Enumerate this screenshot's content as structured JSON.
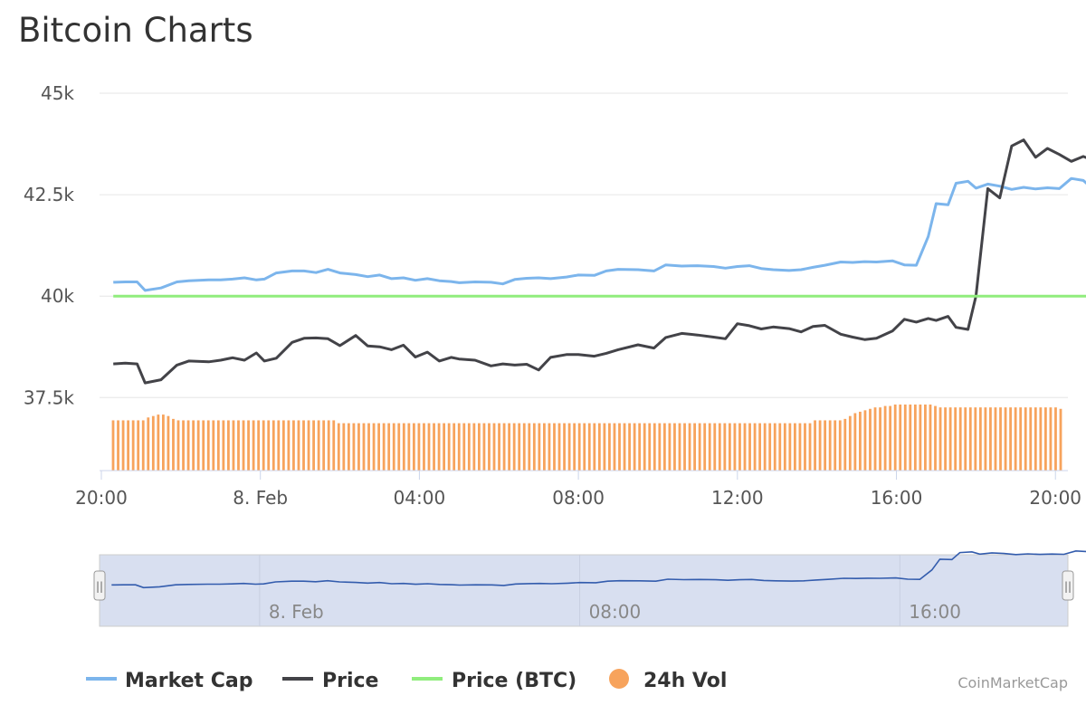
{
  "chart_data": {
    "type": "line",
    "title": "Bitcoin Charts",
    "y_ticks": [
      {
        "label": "45k",
        "value": 45000
      },
      {
        "label": "42.5k",
        "value": 42500
      },
      {
        "label": "40k",
        "value": 40000
      },
      {
        "label": "37.5k",
        "value": 37500
      }
    ],
    "ylim": [
      35700,
      45000
    ],
    "x_ticks": [
      "20:00",
      "8. Feb",
      "04:00",
      "08:00",
      "12:00",
      "16:00",
      "20:00"
    ],
    "x_tick_hours": [
      0,
      4,
      8,
      12,
      16,
      20,
      24
    ],
    "x_range_hours": [
      0,
      24.2
    ],
    "grid": true,
    "legend_position": "bottom",
    "series": [
      {
        "name": "Market Cap",
        "color": "#7cb5ec",
        "points": [
          [
            0.3,
            40340
          ],
          [
            0.6,
            40350
          ],
          [
            0.9,
            40350
          ],
          [
            1.1,
            40140
          ],
          [
            1.5,
            40200
          ],
          [
            1.9,
            40350
          ],
          [
            2.2,
            40380
          ],
          [
            2.7,
            40400
          ],
          [
            3.0,
            40400
          ],
          [
            3.3,
            40420
          ],
          [
            3.6,
            40450
          ],
          [
            3.9,
            40400
          ],
          [
            4.1,
            40420
          ],
          [
            4.4,
            40570
          ],
          [
            4.8,
            40620
          ],
          [
            5.1,
            40620
          ],
          [
            5.4,
            40580
          ],
          [
            5.7,
            40660
          ],
          [
            6.0,
            40570
          ],
          [
            6.4,
            40530
          ],
          [
            6.7,
            40480
          ],
          [
            7.0,
            40520
          ],
          [
            7.3,
            40430
          ],
          [
            7.6,
            40450
          ],
          [
            7.9,
            40390
          ],
          [
            8.2,
            40430
          ],
          [
            8.5,
            40380
          ],
          [
            8.8,
            40360
          ],
          [
            9.0,
            40330
          ],
          [
            9.4,
            40350
          ],
          [
            9.8,
            40340
          ],
          [
            10.1,
            40300
          ],
          [
            10.4,
            40410
          ],
          [
            10.7,
            40440
          ],
          [
            11.0,
            40450
          ],
          [
            11.3,
            40430
          ],
          [
            11.7,
            40470
          ],
          [
            12.0,
            40520
          ],
          [
            12.4,
            40510
          ],
          [
            12.7,
            40620
          ],
          [
            13.0,
            40660
          ],
          [
            13.5,
            40650
          ],
          [
            13.9,
            40620
          ],
          [
            14.2,
            40770
          ],
          [
            14.6,
            40740
          ],
          [
            15.0,
            40750
          ],
          [
            15.4,
            40730
          ],
          [
            15.7,
            40690
          ],
          [
            16.0,
            40730
          ],
          [
            16.3,
            40750
          ],
          [
            16.6,
            40680
          ],
          [
            16.9,
            40650
          ],
          [
            17.3,
            40630
          ],
          [
            17.6,
            40650
          ],
          [
            17.9,
            40710
          ],
          [
            18.2,
            40760
          ],
          [
            18.6,
            40840
          ],
          [
            18.9,
            40830
          ],
          [
            19.2,
            40850
          ],
          [
            19.5,
            40840
          ],
          [
            19.9,
            40870
          ],
          [
            20.2,
            40770
          ],
          [
            20.5,
            40760
          ],
          [
            20.8,
            41470
          ],
          [
            21.0,
            42280
          ],
          [
            21.3,
            42250
          ],
          [
            21.5,
            42780
          ],
          [
            21.8,
            42830
          ],
          [
            22.0,
            42660
          ],
          [
            22.3,
            42760
          ],
          [
            22.6,
            42710
          ],
          [
            22.9,
            42630
          ],
          [
            23.2,
            42680
          ],
          [
            23.5,
            42640
          ],
          [
            23.8,
            42670
          ],
          [
            24.1,
            42650
          ],
          [
            24.4,
            42900
          ],
          [
            24.7,
            42850
          ],
          [
            25.0,
            42600
          ],
          [
            25.3,
            42610
          ],
          [
            25.6,
            42520
          ],
          [
            25.9,
            42420
          ],
          [
            26.2,
            42480
          ],
          [
            26.5,
            42500
          ],
          [
            26.8,
            42460
          ],
          [
            27.1,
            42360
          ],
          [
            27.4,
            42470
          ],
          [
            27.7,
            42400
          ],
          [
            28.0,
            42380
          ]
        ]
      },
      {
        "name": "Price",
        "color": "#434348",
        "points": [
          [
            0.3,
            38330
          ],
          [
            0.6,
            38350
          ],
          [
            0.9,
            38330
          ],
          [
            1.1,
            37860
          ],
          [
            1.5,
            37940
          ],
          [
            1.9,
            38300
          ],
          [
            2.2,
            38400
          ],
          [
            2.7,
            38380
          ],
          [
            3.0,
            38420
          ],
          [
            3.3,
            38480
          ],
          [
            3.6,
            38420
          ],
          [
            3.9,
            38600
          ],
          [
            4.1,
            38400
          ],
          [
            4.4,
            38470
          ],
          [
            4.8,
            38860
          ],
          [
            5.1,
            38960
          ],
          [
            5.4,
            38970
          ],
          [
            5.7,
            38950
          ],
          [
            6.0,
            38780
          ],
          [
            6.4,
            39030
          ],
          [
            6.7,
            38770
          ],
          [
            7.0,
            38750
          ],
          [
            7.3,
            38680
          ],
          [
            7.6,
            38790
          ],
          [
            7.9,
            38500
          ],
          [
            8.2,
            38620
          ],
          [
            8.5,
            38400
          ],
          [
            8.8,
            38490
          ],
          [
            9.0,
            38450
          ],
          [
            9.4,
            38420
          ],
          [
            9.8,
            38280
          ],
          [
            10.1,
            38330
          ],
          [
            10.4,
            38300
          ],
          [
            10.7,
            38320
          ],
          [
            11.0,
            38180
          ],
          [
            11.3,
            38490
          ],
          [
            11.7,
            38560
          ],
          [
            12.0,
            38560
          ],
          [
            12.4,
            38520
          ],
          [
            12.7,
            38590
          ],
          [
            13.0,
            38680
          ],
          [
            13.5,
            38800
          ],
          [
            13.9,
            38720
          ],
          [
            14.2,
            38980
          ],
          [
            14.6,
            39080
          ],
          [
            15.0,
            39040
          ],
          [
            15.4,
            38990
          ],
          [
            15.7,
            38950
          ],
          [
            16.0,
            39320
          ],
          [
            16.3,
            39270
          ],
          [
            16.6,
            39190
          ],
          [
            16.9,
            39240
          ],
          [
            17.3,
            39200
          ],
          [
            17.6,
            39120
          ],
          [
            17.9,
            39250
          ],
          [
            18.2,
            39280
          ],
          [
            18.6,
            39060
          ],
          [
            18.9,
            38990
          ],
          [
            19.2,
            38930
          ],
          [
            19.5,
            38960
          ],
          [
            19.9,
            39140
          ],
          [
            20.2,
            39430
          ],
          [
            20.5,
            39360
          ],
          [
            20.8,
            39450
          ],
          [
            21.0,
            39400
          ],
          [
            21.3,
            39500
          ],
          [
            21.5,
            39230
          ],
          [
            21.8,
            39180
          ],
          [
            22.0,
            40000
          ],
          [
            22.3,
            42650
          ],
          [
            22.6,
            42420
          ],
          [
            22.9,
            43700
          ],
          [
            23.2,
            43850
          ],
          [
            23.5,
            43420
          ],
          [
            23.8,
            43640
          ],
          [
            24.1,
            43490
          ],
          [
            24.4,
            43320
          ],
          [
            24.7,
            43440
          ],
          [
            25.0,
            43330
          ],
          [
            25.3,
            43400
          ],
          [
            25.6,
            43340
          ],
          [
            25.9,
            43940
          ],
          [
            26.2,
            43780
          ],
          [
            26.5,
            43190
          ],
          [
            26.8,
            43280
          ],
          [
            27.1,
            43010
          ],
          [
            27.4,
            42780
          ],
          [
            27.7,
            42990
          ],
          [
            28.0,
            42760
          ]
        ]
      },
      {
        "name": "Price (BTC)",
        "color": "#90ed7d",
        "points": [
          [
            0.3,
            40000
          ],
          [
            28.0,
            40000
          ]
        ]
      }
    ],
    "volume": {
      "name": "24h Vol",
      "color": "#f7a35c",
      "shares": [
        0.35,
        0.35,
        0.35,
        0.35,
        0.35,
        0.35,
        0.35,
        0.37,
        0.38,
        0.39,
        0.39,
        0.38,
        0.36,
        0.35,
        0.35,
        0.35,
        0.35,
        0.35,
        0.35,
        0.35,
        0.35,
        0.35,
        0.35,
        0.35,
        0.35,
        0.35,
        0.35,
        0.35,
        0.35,
        0.35,
        0.35,
        0.35,
        0.35,
        0.35,
        0.35,
        0.35,
        0.35,
        0.35,
        0.35,
        0.35,
        0.35,
        0.35,
        0.35,
        0.35,
        0.35,
        0.33,
        0.33,
        0.33,
        0.33,
        0.33,
        0.33,
        0.33,
        0.33,
        0.33,
        0.33,
        0.33,
        0.33,
        0.33,
        0.33,
        0.33,
        0.33,
        0.33,
        0.33,
        0.33,
        0.33,
        0.33,
        0.33,
        0.33,
        0.33,
        0.33,
        0.33,
        0.33,
        0.33,
        0.33,
        0.33,
        0.33,
        0.33,
        0.33,
        0.33,
        0.33,
        0.33,
        0.33,
        0.33,
        0.33,
        0.33,
        0.33,
        0.33,
        0.33,
        0.33,
        0.33,
        0.33,
        0.33,
        0.33,
        0.33,
        0.33,
        0.33,
        0.33,
        0.33,
        0.33,
        0.33,
        0.33,
        0.33,
        0.33,
        0.33,
        0.33,
        0.33,
        0.33,
        0.33,
        0.33,
        0.33,
        0.33,
        0.33,
        0.33,
        0.33,
        0.33,
        0.33,
        0.33,
        0.33,
        0.33,
        0.33,
        0.33,
        0.33,
        0.33,
        0.33,
        0.33,
        0.33,
        0.33,
        0.33,
        0.33,
        0.33,
        0.33,
        0.33,
        0.33,
        0.33,
        0.33,
        0.33,
        0.33,
        0.33,
        0.33,
        0.33,
        0.35,
        0.35,
        0.35,
        0.35,
        0.35,
        0.35,
        0.36,
        0.38,
        0.4,
        0.41,
        0.42,
        0.43,
        0.44,
        0.44,
        0.45,
        0.45,
        0.46,
        0.46,
        0.46,
        0.46,
        0.46,
        0.46,
        0.46,
        0.46,
        0.45,
        0.44,
        0.44,
        0.44,
        0.44,
        0.44,
        0.44,
        0.44,
        0.44,
        0.44,
        0.44,
        0.44,
        0.44,
        0.44,
        0.44,
        0.44,
        0.44,
        0.44,
        0.44,
        0.44,
        0.44,
        0.44,
        0.44,
        0.44,
        0.44,
        0.43
      ]
    },
    "navigator": {
      "x_ticks": [
        "8. Feb",
        "08:00",
        "16:00"
      ],
      "x_tick_hours": [
        4,
        12,
        20
      ],
      "grip_left": "||",
      "grip_right": "||"
    },
    "credit": "CoinMarketCap"
  }
}
